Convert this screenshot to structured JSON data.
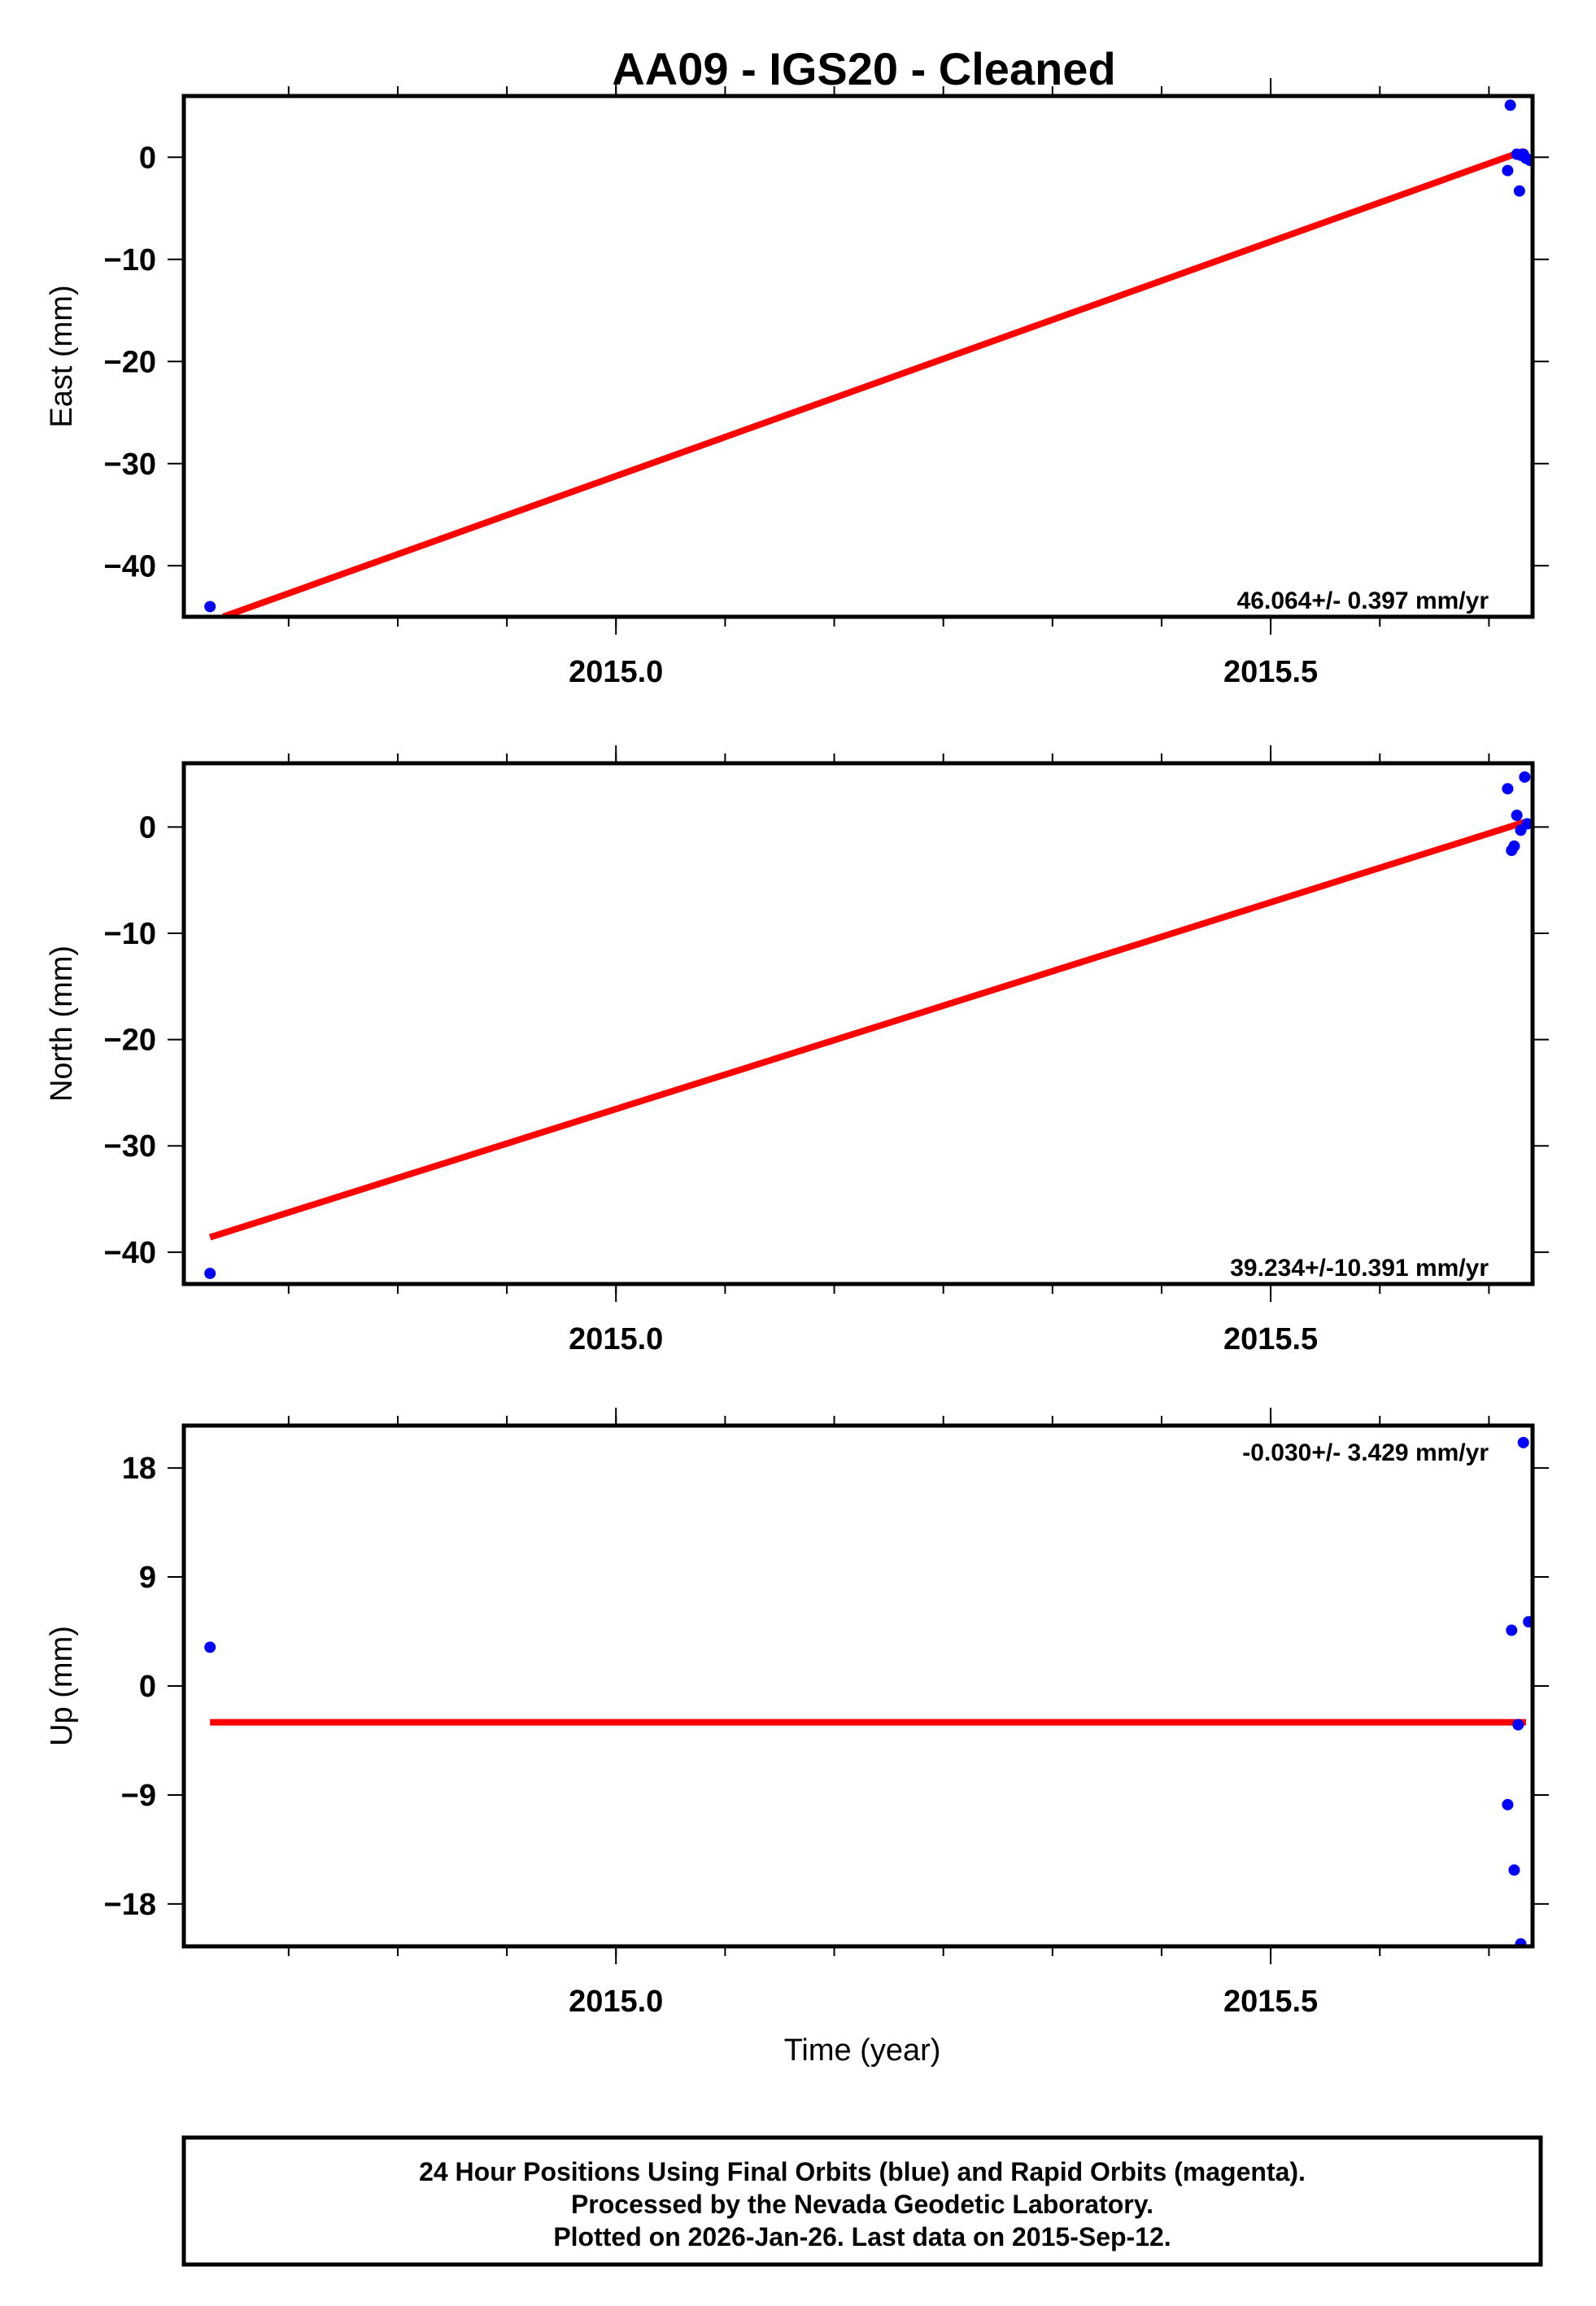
{
  "title": "AA09  - IGS20 - Cleaned",
  "chart_data": [
    {
      "type": "scatter",
      "panel": "east",
      "ylabel": "East (mm)",
      "xlabel": "",
      "xlim": [
        2014.67,
        2015.7
      ],
      "ylim": [
        -45,
        6
      ],
      "x_ticks": [
        "2015.0",
        "2015.5"
      ],
      "y_ticks": [
        "0",
        "−10",
        "−20",
        "−30",
        "−40"
      ],
      "y_tick_values": [
        0,
        -10,
        -20,
        -30,
        -40
      ],
      "rate_annotation": "46.064+/- 0.397 mm/yr",
      "series": [
        {
          "name": "Final Orbits (blue)",
          "color": "#0000ff",
          "points": [
            [
              2014.69,
              -44.0
            ],
            [
              2015.683,
              5.1
            ],
            [
              2015.681,
              -1.3
            ],
            [
              2015.688,
              0.3
            ],
            [
              2015.691,
              0.2
            ],
            [
              2015.693,
              0.3
            ],
            [
              2015.695,
              -0.1
            ],
            [
              2015.698,
              -0.3
            ],
            [
              2015.69,
              -3.3
            ]
          ]
        },
        {
          "name": "Linear fit",
          "color": "#ff0000",
          "line": [
            [
              2014.7,
              -45.0
            ],
            [
              2015.693,
              0.6
            ]
          ]
        }
      ]
    },
    {
      "type": "scatter",
      "panel": "north",
      "ylabel": "North (mm)",
      "xlabel": "",
      "xlim": [
        2014.67,
        2015.7
      ],
      "ylim": [
        -43,
        6
      ],
      "x_ticks": [
        "2015.0",
        "2015.5"
      ],
      "y_ticks": [
        "0",
        "−10",
        "−20",
        "−30",
        "−40"
      ],
      "y_tick_values": [
        0,
        -10,
        -20,
        -30,
        -40
      ],
      "rate_annotation": "39.234+/-10.391 mm/yr",
      "series": [
        {
          "name": "Final Orbits (blue)",
          "color": "#0000ff",
          "points": [
            [
              2014.69,
              -42.0
            ],
            [
              2015.681,
              3.6
            ],
            [
              2015.694,
              4.7
            ],
            [
              2015.688,
              1.1
            ],
            [
              2015.696,
              0.3
            ],
            [
              2015.691,
              -0.3
            ],
            [
              2015.684,
              -2.2
            ],
            [
              2015.686,
              -1.8
            ]
          ]
        },
        {
          "name": "Linear fit",
          "color": "#ff0000",
          "line": [
            [
              2014.69,
              -38.6
            ],
            [
              2015.695,
              0.5
            ]
          ]
        }
      ]
    },
    {
      "type": "scatter",
      "panel": "up",
      "ylabel": "Up (mm)",
      "xlabel": "Time (year)",
      "xlim": [
        2014.67,
        2015.7
      ],
      "ylim": [
        -21.5,
        21.5
      ],
      "x_ticks": [
        "2015.0",
        "2015.5"
      ],
      "y_ticks": [
        "18",
        "9",
        "0",
        "−9",
        "−18"
      ],
      "y_tick_values": [
        18,
        9,
        0,
        -9,
        -18
      ],
      "rate_annotation": "-0.030+/- 3.429 mm/yr",
      "series": [
        {
          "name": "Final Orbits (blue)",
          "color": "#0000ff",
          "points": [
            [
              2014.69,
              3.2
            ],
            [
              2015.693,
              20.1
            ],
            [
              2015.684,
              4.6
            ],
            [
              2015.697,
              5.3
            ],
            [
              2015.689,
              -3.2
            ],
            [
              2015.681,
              -9.8
            ],
            [
              2015.686,
              -15.2
            ],
            [
              2015.691,
              -21.3
            ]
          ]
        },
        {
          "name": "Linear fit",
          "color": "#ff0000",
          "line": [
            [
              2014.69,
              -3.0
            ],
            [
              2015.695,
              -3.0
            ]
          ]
        }
      ]
    }
  ],
  "footer": {
    "line1": "24 Hour Positions Using Final Orbits (blue) and Rapid Orbits (magenta).",
    "line2": "Processed by the Nevada Geodetic Laboratory.",
    "line3": "Plotted on 2026-Jan-26. Last data on 2015-Sep-12."
  }
}
